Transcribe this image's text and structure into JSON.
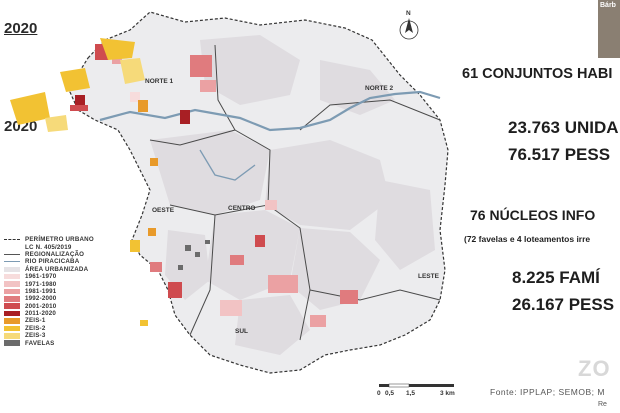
{
  "title_year": "2020",
  "title_year_left": "2020",
  "map": {
    "regions": [
      "NORTE 1",
      "NORTE 2",
      "CENTRO",
      "OESTE",
      "LESTE",
      "SUL"
    ],
    "north_label": "N",
    "scale_labels": [
      "0",
      "0,5",
      "1,5",
      "3 km"
    ]
  },
  "legend": [
    {
      "label": "PERÍMETRO URBANO",
      "kind": "dash",
      "color": "#333333"
    },
    {
      "label": "LC N. 405/2019",
      "kind": "none",
      "color": "#333333"
    },
    {
      "label": "REGIONALIZAÇÃO",
      "kind": "line",
      "color": "#555555"
    },
    {
      "label": "RIO PIRACICABA",
      "kind": "line",
      "color": "#7d9bb3"
    },
    {
      "label": "ÁREA URBANIZADA",
      "kind": "box",
      "color": "#e6e3e6"
    },
    {
      "label": "1961-1970",
      "kind": "box",
      "color": "#f7dcdc"
    },
    {
      "label": "1971-1980",
      "kind": "box",
      "color": "#f2c3c4"
    },
    {
      "label": "1981-1991",
      "kind": "box",
      "color": "#eba1a3"
    },
    {
      "label": "1992-2000",
      "kind": "box",
      "color": "#e07b7e"
    },
    {
      "label": "2001-2010",
      "kind": "box",
      "color": "#cf4b4f"
    },
    {
      "label": "2011-2020",
      "kind": "box",
      "color": "#a81f24"
    },
    {
      "label": "ZEIS-1",
      "kind": "box",
      "color": "#e89a2a"
    },
    {
      "label": "ZEIS-2",
      "kind": "box",
      "color": "#f2c233"
    },
    {
      "label": "ZEIS-3",
      "kind": "box",
      "color": "#f6da7a"
    },
    {
      "label": "FAVELAS",
      "kind": "box",
      "color": "#6b6b6b"
    }
  ],
  "stats": {
    "conjuntos": "61 CONJUNTOS HABI",
    "unidades": "23.763 UNIDA",
    "pessoas1": "76.517 PESS",
    "nucleos": "76 NÚCLEOS INFO",
    "nucleos_detail": "(72 favelas e 4 loteamentos irre",
    "familias": "8.225 FAMÍ",
    "pessoas2": "26.167 PESS"
  },
  "source": "Fonte: IPPLAP; SEMOB; M",
  "source2": "Re",
  "webcam_name": "Bárb",
  "zoom_text": "ZO"
}
